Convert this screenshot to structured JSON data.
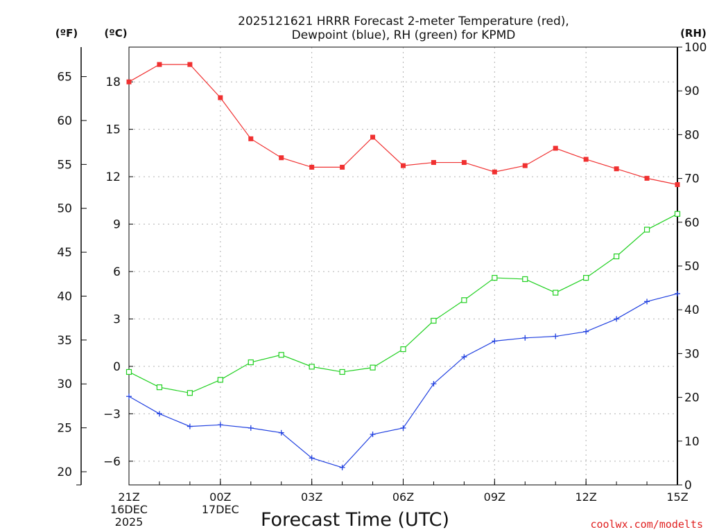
{
  "chart_data": {
    "type": "line",
    "title_line1": "2025121621 HRRR Forecast 2-meter Temperature (red),",
    "title_line2": "Dewpoint (blue), RH (green) for KPMD",
    "xlabel": "Forecast Time (UTC)",
    "unit_f": "(ºF)",
    "unit_c": "(ºC)",
    "unit_rh": "(RH)",
    "credit": "coolwx.com/modelts",
    "x_hours": [
      0,
      1,
      2,
      3,
      4,
      5,
      6,
      7,
      8,
      9,
      10,
      11,
      12,
      13,
      14,
      15,
      16,
      17,
      18
    ],
    "x_ticks": [
      {
        "hour": 0,
        "lines": [
          "21Z",
          "16DEC",
          "2025"
        ]
      },
      {
        "hour": 3,
        "lines": [
          "00Z",
          "17DEC"
        ]
      },
      {
        "hour": 6,
        "lines": [
          "03Z"
        ]
      },
      {
        "hour": 9,
        "lines": [
          "06Z"
        ]
      },
      {
        "hour": 12,
        "lines": [
          "09Z"
        ]
      },
      {
        "hour": 15,
        "lines": [
          "12Z"
        ]
      },
      {
        "hour": 18,
        "lines": [
          "15Z"
        ]
      }
    ],
    "celsius_range": [
      -7.5,
      20.2
    ],
    "celsius_ticks": [
      "18",
      "15",
      "12",
      "9",
      "6",
      "3",
      "0",
      "−3",
      "−6"
    ],
    "fahrenheit_ticks": [
      "65",
      "60",
      "55",
      "50",
      "45",
      "40",
      "35",
      "30",
      "25",
      "20"
    ],
    "rh_range": [
      0,
      100
    ],
    "rh_ticks": [
      "100",
      "90",
      "80",
      "70",
      "60",
      "50",
      "40",
      "30",
      "20",
      "10",
      "0"
    ],
    "series": [
      {
        "name": "Temperature",
        "unit": "C",
        "color": "#f03030",
        "marker": "filled-square",
        "values": [
          18.0,
          19.1,
          19.1,
          17.0,
          14.4,
          13.2,
          12.6,
          12.6,
          14.5,
          12.7,
          12.9,
          12.9,
          12.3,
          12.7,
          13.8,
          13.1,
          12.5,
          11.9,
          11.5
        ]
      },
      {
        "name": "Dewpoint",
        "unit": "C",
        "color": "#2040e0",
        "marker": "plus",
        "values": [
          -1.9,
          -3.0,
          -3.8,
          -3.7,
          -3.9,
          -4.2,
          -5.8,
          -6.4,
          -4.3,
          -3.9,
          -1.1,
          0.6,
          1.6,
          1.8,
          1.9,
          2.2,
          3.0,
          4.1,
          4.6
        ]
      },
      {
        "name": "RH",
        "unit": "%",
        "color": "#20d020",
        "marker": "open-square",
        "values": [
          25.8,
          22.3,
          21.0,
          24.0,
          28.0,
          29.7,
          27.0,
          25.8,
          26.8,
          31.0,
          37.5,
          42.2,
          47.3,
          47.0,
          43.9,
          47.3,
          52.2,
          58.3,
          61.9
        ]
      }
    ]
  }
}
